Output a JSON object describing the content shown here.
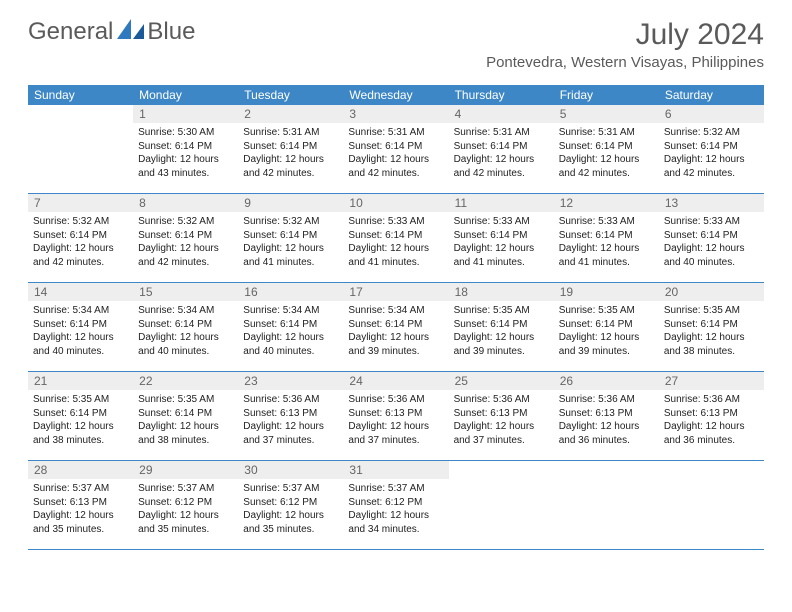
{
  "logo": {
    "text1": "General",
    "text2": "Blue"
  },
  "title": "July 2024",
  "location": "Pontevedra, Western Visayas, Philippines",
  "colors": {
    "header_bar": "#3d87c7",
    "header_text": "#ffffff",
    "daynum_bg": "#eeeeee",
    "daynum_text": "#666666",
    "body_text": "#222222",
    "title_text": "#5a5a5a",
    "divider": "#3d87c7"
  },
  "weekdays": [
    "Sunday",
    "Monday",
    "Tuesday",
    "Wednesday",
    "Thursday",
    "Friday",
    "Saturday"
  ],
  "weeks": [
    [
      {
        "n": "",
        "sunrise": "",
        "sunset": "",
        "daylight": ""
      },
      {
        "n": "1",
        "sunrise": "Sunrise: 5:30 AM",
        "sunset": "Sunset: 6:14 PM",
        "daylight": "Daylight: 12 hours and 43 minutes."
      },
      {
        "n": "2",
        "sunrise": "Sunrise: 5:31 AM",
        "sunset": "Sunset: 6:14 PM",
        "daylight": "Daylight: 12 hours and 42 minutes."
      },
      {
        "n": "3",
        "sunrise": "Sunrise: 5:31 AM",
        "sunset": "Sunset: 6:14 PM",
        "daylight": "Daylight: 12 hours and 42 minutes."
      },
      {
        "n": "4",
        "sunrise": "Sunrise: 5:31 AM",
        "sunset": "Sunset: 6:14 PM",
        "daylight": "Daylight: 12 hours and 42 minutes."
      },
      {
        "n": "5",
        "sunrise": "Sunrise: 5:31 AM",
        "sunset": "Sunset: 6:14 PM",
        "daylight": "Daylight: 12 hours and 42 minutes."
      },
      {
        "n": "6",
        "sunrise": "Sunrise: 5:32 AM",
        "sunset": "Sunset: 6:14 PM",
        "daylight": "Daylight: 12 hours and 42 minutes."
      }
    ],
    [
      {
        "n": "7",
        "sunrise": "Sunrise: 5:32 AM",
        "sunset": "Sunset: 6:14 PM",
        "daylight": "Daylight: 12 hours and 42 minutes."
      },
      {
        "n": "8",
        "sunrise": "Sunrise: 5:32 AM",
        "sunset": "Sunset: 6:14 PM",
        "daylight": "Daylight: 12 hours and 42 minutes."
      },
      {
        "n": "9",
        "sunrise": "Sunrise: 5:32 AM",
        "sunset": "Sunset: 6:14 PM",
        "daylight": "Daylight: 12 hours and 41 minutes."
      },
      {
        "n": "10",
        "sunrise": "Sunrise: 5:33 AM",
        "sunset": "Sunset: 6:14 PM",
        "daylight": "Daylight: 12 hours and 41 minutes."
      },
      {
        "n": "11",
        "sunrise": "Sunrise: 5:33 AM",
        "sunset": "Sunset: 6:14 PM",
        "daylight": "Daylight: 12 hours and 41 minutes."
      },
      {
        "n": "12",
        "sunrise": "Sunrise: 5:33 AM",
        "sunset": "Sunset: 6:14 PM",
        "daylight": "Daylight: 12 hours and 41 minutes."
      },
      {
        "n": "13",
        "sunrise": "Sunrise: 5:33 AM",
        "sunset": "Sunset: 6:14 PM",
        "daylight": "Daylight: 12 hours and 40 minutes."
      }
    ],
    [
      {
        "n": "14",
        "sunrise": "Sunrise: 5:34 AM",
        "sunset": "Sunset: 6:14 PM",
        "daylight": "Daylight: 12 hours and 40 minutes."
      },
      {
        "n": "15",
        "sunrise": "Sunrise: 5:34 AM",
        "sunset": "Sunset: 6:14 PM",
        "daylight": "Daylight: 12 hours and 40 minutes."
      },
      {
        "n": "16",
        "sunrise": "Sunrise: 5:34 AM",
        "sunset": "Sunset: 6:14 PM",
        "daylight": "Daylight: 12 hours and 40 minutes."
      },
      {
        "n": "17",
        "sunrise": "Sunrise: 5:34 AM",
        "sunset": "Sunset: 6:14 PM",
        "daylight": "Daylight: 12 hours and 39 minutes."
      },
      {
        "n": "18",
        "sunrise": "Sunrise: 5:35 AM",
        "sunset": "Sunset: 6:14 PM",
        "daylight": "Daylight: 12 hours and 39 minutes."
      },
      {
        "n": "19",
        "sunrise": "Sunrise: 5:35 AM",
        "sunset": "Sunset: 6:14 PM",
        "daylight": "Daylight: 12 hours and 39 minutes."
      },
      {
        "n": "20",
        "sunrise": "Sunrise: 5:35 AM",
        "sunset": "Sunset: 6:14 PM",
        "daylight": "Daylight: 12 hours and 38 minutes."
      }
    ],
    [
      {
        "n": "21",
        "sunrise": "Sunrise: 5:35 AM",
        "sunset": "Sunset: 6:14 PM",
        "daylight": "Daylight: 12 hours and 38 minutes."
      },
      {
        "n": "22",
        "sunrise": "Sunrise: 5:35 AM",
        "sunset": "Sunset: 6:14 PM",
        "daylight": "Daylight: 12 hours and 38 minutes."
      },
      {
        "n": "23",
        "sunrise": "Sunrise: 5:36 AM",
        "sunset": "Sunset: 6:13 PM",
        "daylight": "Daylight: 12 hours and 37 minutes."
      },
      {
        "n": "24",
        "sunrise": "Sunrise: 5:36 AM",
        "sunset": "Sunset: 6:13 PM",
        "daylight": "Daylight: 12 hours and 37 minutes."
      },
      {
        "n": "25",
        "sunrise": "Sunrise: 5:36 AM",
        "sunset": "Sunset: 6:13 PM",
        "daylight": "Daylight: 12 hours and 37 minutes."
      },
      {
        "n": "26",
        "sunrise": "Sunrise: 5:36 AM",
        "sunset": "Sunset: 6:13 PM",
        "daylight": "Daylight: 12 hours and 36 minutes."
      },
      {
        "n": "27",
        "sunrise": "Sunrise: 5:36 AM",
        "sunset": "Sunset: 6:13 PM",
        "daylight": "Daylight: 12 hours and 36 minutes."
      }
    ],
    [
      {
        "n": "28",
        "sunrise": "Sunrise: 5:37 AM",
        "sunset": "Sunset: 6:13 PM",
        "daylight": "Daylight: 12 hours and 35 minutes."
      },
      {
        "n": "29",
        "sunrise": "Sunrise: 5:37 AM",
        "sunset": "Sunset: 6:12 PM",
        "daylight": "Daylight: 12 hours and 35 minutes."
      },
      {
        "n": "30",
        "sunrise": "Sunrise: 5:37 AM",
        "sunset": "Sunset: 6:12 PM",
        "daylight": "Daylight: 12 hours and 35 minutes."
      },
      {
        "n": "31",
        "sunrise": "Sunrise: 5:37 AM",
        "sunset": "Sunset: 6:12 PM",
        "daylight": "Daylight: 12 hours and 34 minutes."
      },
      {
        "n": "",
        "sunrise": "",
        "sunset": "",
        "daylight": ""
      },
      {
        "n": "",
        "sunrise": "",
        "sunset": "",
        "daylight": ""
      },
      {
        "n": "",
        "sunrise": "",
        "sunset": "",
        "daylight": ""
      }
    ]
  ]
}
